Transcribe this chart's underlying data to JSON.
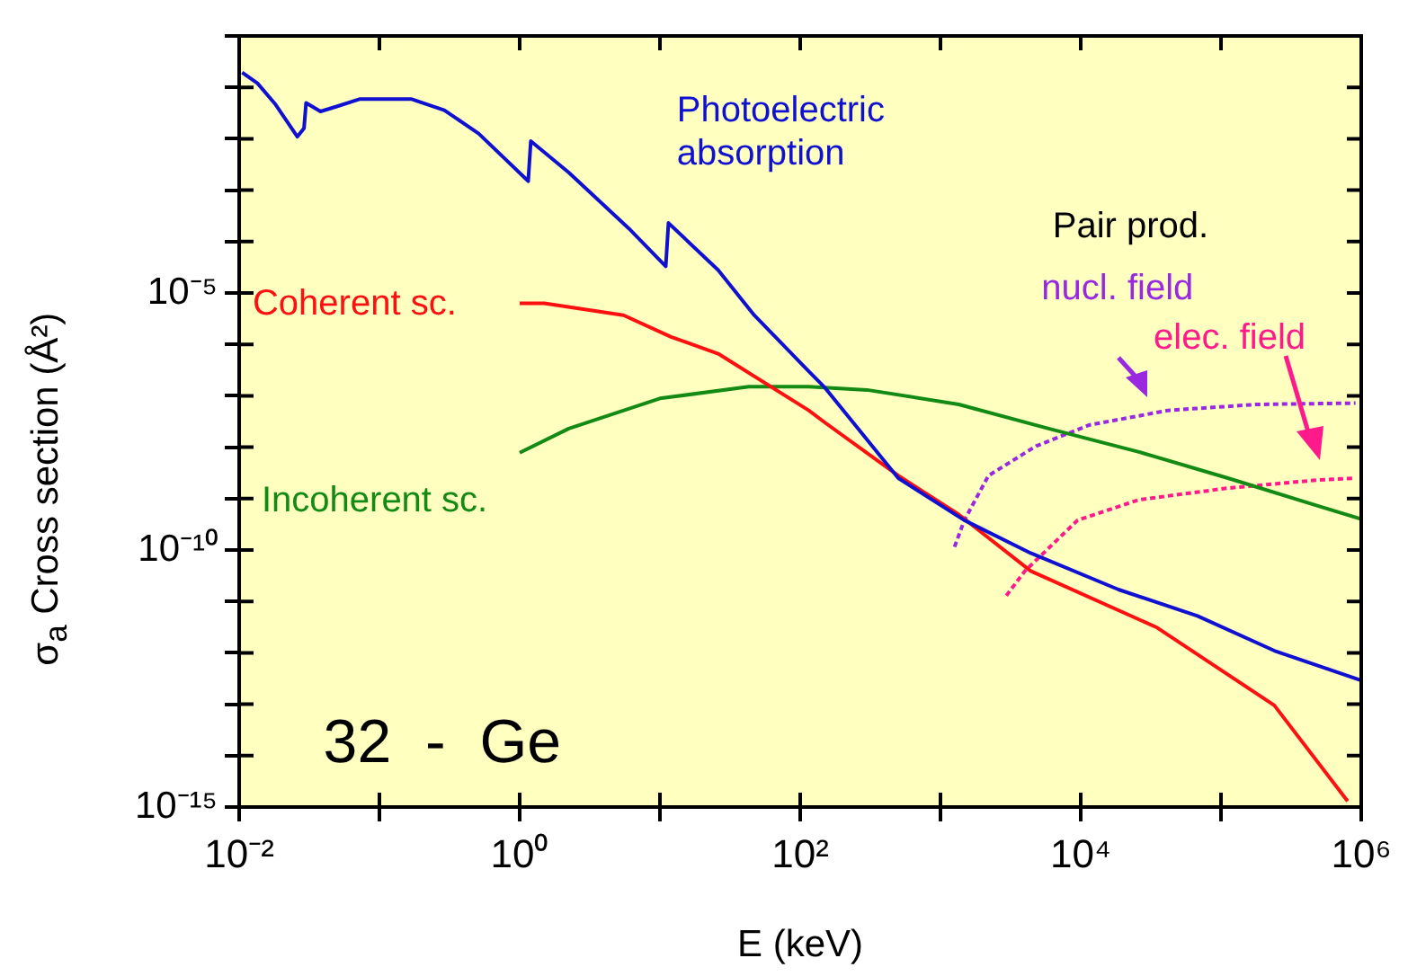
{
  "chart_data": {
    "type": "line",
    "xlabel": "E (keV)",
    "ylabel": "σ$_{a}$  Cross section  (Å²)",
    "log": "xy",
    "grid": false,
    "legend": false,
    "marker": "none",
    "xlim": [
      0.01,
      1000000
    ],
    "ylim": [
      1e-15,
      1
    ],
    "xticks": [
      {
        "value": 0.01,
        "label": "10⁻²"
      },
      {
        "value": 0.1,
        "label": null
      },
      {
        "value": 1,
        "label": "10⁰"
      },
      {
        "value": 10,
        "label": null
      },
      {
        "value": 100,
        "label": "10²"
      },
      {
        "value": 1000,
        "label": null
      },
      {
        "value": 10000,
        "label": "10⁴"
      },
      {
        "value": 100000,
        "label": null
      },
      {
        "value": 1000000,
        "label": "10⁶"
      }
    ],
    "yticks": [
      {
        "value": 1e-15,
        "label": "10⁻¹⁵"
      },
      {
        "value": 1e-14,
        "label": null
      },
      {
        "value": 1e-13,
        "label": null
      },
      {
        "value": 1e-12,
        "label": null
      },
      {
        "value": 1e-11,
        "label": null
      },
      {
        "value": 1e-10,
        "label": "10⁻¹⁰"
      },
      {
        "value": 1e-09,
        "label": null
      },
      {
        "value": 1e-08,
        "label": null
      },
      {
        "value": 1e-07,
        "label": null
      },
      {
        "value": 1e-06,
        "label": null
      },
      {
        "value": 1e-05,
        "label": "10⁻⁵"
      },
      {
        "value": 0.0001,
        "label": null
      },
      {
        "value": 0.001,
        "label": null
      },
      {
        "value": 0.01,
        "label": null
      },
      {
        "value": 0.1,
        "label": null
      },
      {
        "value": 1,
        "label": null
      }
    ],
    "annotations": [
      "Pair prod.",
      "32  -  Ge"
    ],
    "series": [
      {
        "name": "Photoelectric absorption",
        "color": "#1010d0",
        "line_style": "solid",
        "x": [
          0.0105,
          0.0135,
          0.018,
          0.026,
          0.029,
          0.03,
          0.038,
          0.049,
          0.072,
          0.17,
          0.29,
          0.51,
          1.15,
          1.2,
          2.24,
          6,
          11,
          11.5,
          26,
          47,
          115,
          148,
          500,
          1480,
          4400,
          18600,
          68000,
          240000,
          1000000
        ],
        "values": [
          0.195,
          0.12,
          0.048,
          0.011,
          0.016,
          0.05,
          0.034,
          0.042,
          0.059,
          0.059,
          0.036,
          0.0126,
          0.0015,
          0.009,
          0.0022,
          0.00018,
          3.3e-05,
          0.00023,
          2.8e-05,
          3.7e-06,
          3e-07,
          1.5e-07,
          2.5e-09,
          3.8e-10,
          8.7e-11,
          1.7e-11,
          5.2e-12,
          1.1e-12,
          2.9e-13
        ]
      },
      {
        "name": "Coherent sc.",
        "color": "#ff1010",
        "line_style": "solid",
        "x": [
          1,
          1.5,
          5.5,
          12,
          26,
          115,
          148,
          500,
          1350,
          4400,
          35000,
          240000,
          800000
        ],
        "values": [
          6.3e-06,
          6.3e-06,
          3.7e-06,
          1.4e-06,
          6.6e-07,
          5.2e-08,
          3.1e-08,
          2.8e-09,
          4.9e-10,
          3.9e-11,
          3.1e-12,
          9.5e-14,
          1.3e-15
        ]
      },
      {
        "name": "Incoherent sc.",
        "color": "#138a13",
        "line_style": "solid",
        "x": [
          1,
          2.24,
          10,
          43,
          115,
          300,
          1350,
          5900,
          26000,
          112000,
          490000,
          1000000
        ],
        "values": [
          7.8e-09,
          2.3e-08,
          8.9e-08,
          1.5e-07,
          1.5e-07,
          1.3e-07,
          6.8e-08,
          2.3e-08,
          8.1e-09,
          2.5e-09,
          7.2e-10,
          4e-10
        ]
      },
      {
        "name": "nucl. field",
        "color": "#9a28e0",
        "line_style": "dashed",
        "x": [
          1260,
          1480,
          2200,
          4800,
          11500,
          42000,
          180000,
          910000
        ],
        "values": [
          1.15e-10,
          3.8e-10,
          2.8e-09,
          1.05e-08,
          2.7e-08,
          5.2e-08,
          6.8e-08,
          7.2e-08
        ]
      },
      {
        "name": "elec. field",
        "color": "#ff1a8c",
        "line_style": "dashed",
        "x": [
          2950,
          4000,
          9500,
          26000,
          112000,
          490000,
          910000
        ],
        "values": [
          1.3e-11,
          3.9e-11,
          3.8e-10,
          9.5e-10,
          1.6e-09,
          2.3e-09,
          2.5e-09
        ]
      }
    ]
  }
}
